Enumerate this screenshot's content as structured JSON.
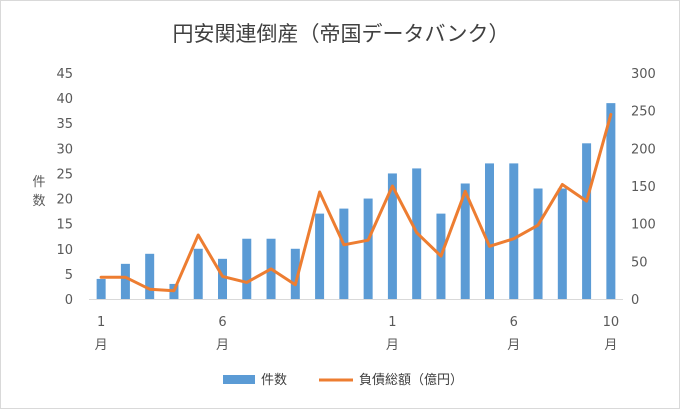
{
  "chart_data": {
    "type": "bar",
    "title": "円安関連倒産（帝国データバンク）",
    "ylabel": "件数",
    "y2label": "",
    "ylim": [
      0,
      45
    ],
    "y2lim": [
      0,
      300
    ],
    "yticks": [
      "0",
      "5",
      "10",
      "15",
      "20",
      "25",
      "30",
      "35",
      "40",
      "45"
    ],
    "y2ticks": [
      "0",
      "50",
      "100",
      "150",
      "200",
      "250",
      "300"
    ],
    "xtick_labels": [
      {
        "index": 0,
        "label": "1",
        "unit": "月"
      },
      {
        "index": 5,
        "label": "6",
        "unit": "月"
      },
      {
        "index": 12,
        "label": "1",
        "unit": "月"
      },
      {
        "index": 17,
        "label": "6",
        "unit": "月"
      },
      {
        "index": 21,
        "label": "10",
        "unit": "月"
      }
    ],
    "series": [
      {
        "name": "件数",
        "type": "bar",
        "axis": "left",
        "color": "#5b9bd5",
        "values": [
          4,
          7,
          9,
          3,
          10,
          8,
          12,
          12,
          10,
          17,
          18,
          20,
          25,
          26,
          17,
          23,
          27,
          27,
          22,
          22,
          31,
          39
        ]
      },
      {
        "name": "負債総額（億円）",
        "type": "line",
        "axis": "right",
        "color": "#ed7d31",
        "values": [
          29,
          29,
          13,
          11,
          85,
          30,
          22,
          40,
          19,
          142,
          72,
          78,
          150,
          88,
          57,
          143,
          70,
          80,
          98,
          152,
          130,
          245
        ]
      }
    ],
    "grid": false,
    "legend_position": "bottom"
  }
}
